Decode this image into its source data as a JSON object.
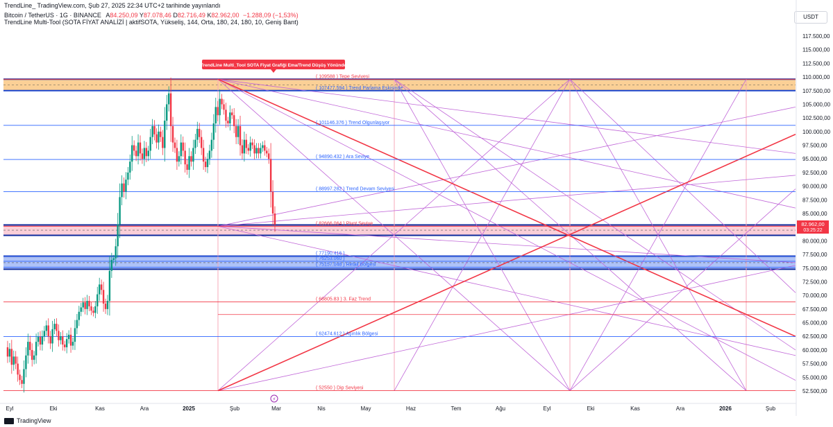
{
  "header": {
    "published": "TrendLine_ TradingView.com, Şub 27, 2025 22:34 UTC+2 tarihinde yayınlandı",
    "symbol_prefix": "Bitcoin / TetherUS · 1G · BINANCE",
    "ohlc": {
      "open_label": "A",
      "open": "84.250,09",
      "high_label": "Y",
      "high": "87.078,46",
      "low_label": "D",
      "low": "82.716,49",
      "close_label": "K",
      "close": "82.962,00",
      "change": "−1.288,09 (−1,53%)"
    },
    "indicator": "TrendLine Multi-Tool (SOTA FİYAT ANALİZİ | aktifSOTA, Yükseliş, 144, Orta, 180, 24, 180, 10, Geniş Bant)"
  },
  "currency": "USDT",
  "annotation": "TrendLine Multi_Tool SOTA Fiyat Grafiği  Ema/Trend Düşüş Yönünde",
  "last_price_label": "82.962,00",
  "countdown_label": "03:25:22",
  "footer_logo": "TradingView",
  "chart_data": {
    "type": "candlestick",
    "yaxis": {
      "min": 52500,
      "max": 117500,
      "ticks": [
        "117.500,00",
        "115.000,00",
        "112.500,00",
        "110.000,00",
        "107.500,00",
        "105.000,00",
        "102.500,00",
        "100.000,00",
        "97.500,00",
        "95.000,00",
        "92.500,00",
        "90.000,00",
        "87.500,00",
        "85.000,00",
        "82.500,00",
        "80.000,00",
        "77.500,00",
        "75.000,00",
        "72.500,00",
        "70.000,00",
        "67.500,00",
        "65.000,00",
        "62.500,00",
        "60.000,00",
        "57.500,00",
        "55.000,00",
        "52.500,00"
      ]
    },
    "xaxis": {
      "labels": [
        "Eyl",
        "Eki",
        "Kas",
        "Ara",
        "2025",
        "Şub",
        "Mar",
        "Nis",
        "May",
        "Haz",
        "Tem",
        "Ağu",
        "Eyl",
        "Eki",
        "Kas",
        "Ara",
        "2026",
        "Şub"
      ]
    },
    "levels": [
      {
        "label": "( 109588 ) Tepe Seviyesi",
        "value": 109588,
        "color": "#f23645"
      },
      {
        "label": "( 107477.594 ) Trend Parlama Eşkisinde",
        "value": 107477.594,
        "color": "#2962ff"
      },
      {
        "label": "( 101146.376 ) Trend Olgunlaşıyor",
        "value": 101146.376,
        "color": "#2962ff"
      },
      {
        "label": "( 94890.432 ) Ara Seviye",
        "value": 94890.432,
        "color": "#2962ff"
      },
      {
        "label": "( 88997.282 ) Trend Devam Seviyesi",
        "value": 88997.282,
        "color": "#2962ff"
      },
      {
        "label": "( 82666.064 ) Pivot Seviye",
        "value": 82666.064,
        "color": "#f23645"
      },
      {
        "label": "( 77190.416 )",
        "value": 77190.416,
        "color": "#2962ff"
      },
      {
        "label": "( 76253.060 )",
        "value": 76253.06,
        "color": "#2962ff"
      },
      {
        "label": "( 75157.048 ) Retail Bölgesi",
        "value": 75157.048,
        "color": "#2962ff"
      },
      {
        "label": "( 68805.83 ) 3. Faz Trend",
        "value": 68805.83,
        "color": "#f23645"
      },
      {
        "label": "( 62474.612 ) Aşırılık Bölgesi",
        "value": 62474.612,
        "color": "#2962ff"
      },
      {
        "label": "( 52550 ) Dip Seviyesi",
        "value": 52550,
        "color": "#f23645"
      }
    ],
    "bands": [
      {
        "from": 107500,
        "to": 109600,
        "color": "#f7a940"
      },
      {
        "from": 81000,
        "to": 82900,
        "color": "#f7a8b8"
      },
      {
        "from": 74800,
        "to": 77200,
        "color": "#6b8ff0"
      }
    ],
    "price_path": [
      [
        0,
        60500
      ],
      [
        3,
        58800
      ],
      [
        6,
        60200
      ],
      [
        9,
        57300
      ],
      [
        12,
        58800
      ],
      [
        15,
        57500
      ],
      [
        18,
        55500
      ],
      [
        21,
        54500
      ],
      [
        24,
        53800
      ],
      [
        27,
        56500
      ],
      [
        30,
        59000
      ],
      [
        33,
        61500
      ],
      [
        36,
        60000
      ],
      [
        39,
        58200
      ],
      [
        42,
        59000
      ],
      [
        45,
        61500
      ],
      [
        48,
        62400
      ],
      [
        51,
        61000
      ],
      [
        54,
        62500
      ],
      [
        57,
        63500
      ],
      [
        60,
        64500
      ],
      [
        63,
        62500
      ],
      [
        66,
        61200
      ],
      [
        69,
        63800
      ],
      [
        72,
        64800
      ],
      [
        75,
        63500
      ],
      [
        78,
        61800
      ],
      [
        81,
        62500
      ],
      [
        84,
        61000
      ],
      [
        87,
        60500
      ],
      [
        90,
        62000
      ],
      [
        93,
        62800
      ],
      [
        96,
        60800
      ],
      [
        99,
        61500
      ],
      [
        102,
        64000
      ],
      [
        105,
        65500
      ],
      [
        108,
        67000
      ],
      [
        111,
        67800
      ],
      [
        114,
        68700
      ],
      [
        117,
        67500
      ],
      [
        120,
        69000
      ],
      [
        123,
        68000
      ],
      [
        126,
        67200
      ],
      [
        129,
        66800
      ],
      [
        132,
        68000
      ],
      [
        135,
        70200
      ],
      [
        138,
        72000
      ],
      [
        141,
        71000
      ],
      [
        144,
        68500
      ],
      [
        147,
        67500
      ],
      [
        150,
        69000
      ],
      [
        153,
        74500
      ],
      [
        156,
        76500
      ],
      [
        159,
        76800
      ],
      [
        162,
        79000
      ],
      [
        165,
        83000
      ],
      [
        168,
        88000
      ],
      [
        171,
        90500
      ],
      [
        174,
        89000
      ],
      [
        177,
        91200
      ],
      [
        180,
        92500
      ],
      [
        183,
        94500
      ],
      [
        186,
        97500
      ],
      [
        189,
        96500
      ],
      [
        192,
        95500
      ],
      [
        195,
        98000
      ],
      [
        198,
        96000
      ],
      [
        201,
        95000
      ],
      [
        204,
        97000
      ],
      [
        207,
        95500
      ],
      [
        210,
        96500
      ],
      [
        213,
        99000
      ],
      [
        216,
        101000
      ],
      [
        219,
        99500
      ],
      [
        222,
        98000
      ],
      [
        225,
        100000
      ],
      [
        228,
        99000
      ],
      [
        231,
        97000
      ],
      [
        234,
        102000
      ],
      [
        237,
        105000
      ],
      [
        240,
        107000
      ],
      [
        243,
        101000
      ],
      [
        246,
        98000
      ],
      [
        249,
        97000
      ],
      [
        252,
        94500
      ],
      [
        255,
        95500
      ],
      [
        258,
        98000
      ],
      [
        261,
        96500
      ],
      [
        264,
        94000
      ],
      [
        267,
        93000
      ],
      [
        270,
        95500
      ],
      [
        273,
        94500
      ],
      [
        276,
        97000
      ],
      [
        279,
        98500
      ],
      [
        282,
        100500
      ],
      [
        285,
        99000
      ],
      [
        288,
        97000
      ],
      [
        291,
        94500
      ],
      [
        294,
        93500
      ],
      [
        297,
        95000
      ],
      [
        300,
        96500
      ],
      [
        303,
        98500
      ],
      [
        306,
        101500
      ],
      [
        309,
        104500
      ],
      [
        312,
        103000
      ],
      [
        315,
        106000
      ],
      [
        318,
        105000
      ],
      [
        321,
        104000
      ],
      [
        324,
        102000
      ],
      [
        327,
        101500
      ],
      [
        330,
        103500
      ],
      [
        333,
        103000
      ],
      [
        336,
        101000
      ],
      [
        339,
        99000
      ],
      [
        342,
        101000
      ],
      [
        345,
        97500
      ],
      [
        348,
        96000
      ],
      [
        351,
        98500
      ],
      [
        354,
        97000
      ],
      [
        357,
        96500
      ],
      [
        360,
        98000
      ],
      [
        363,
        97500
      ],
      [
        366,
        96000
      ],
      [
        369,
        97000
      ],
      [
        372,
        96000
      ],
      [
        375,
        97000
      ],
      [
        378,
        97500
      ],
      [
        381,
        96500
      ],
      [
        384,
        96000
      ],
      [
        387,
        95000
      ],
      [
        390,
        89000
      ],
      [
        393,
        85000
      ],
      [
        396,
        82962
      ]
    ]
  }
}
